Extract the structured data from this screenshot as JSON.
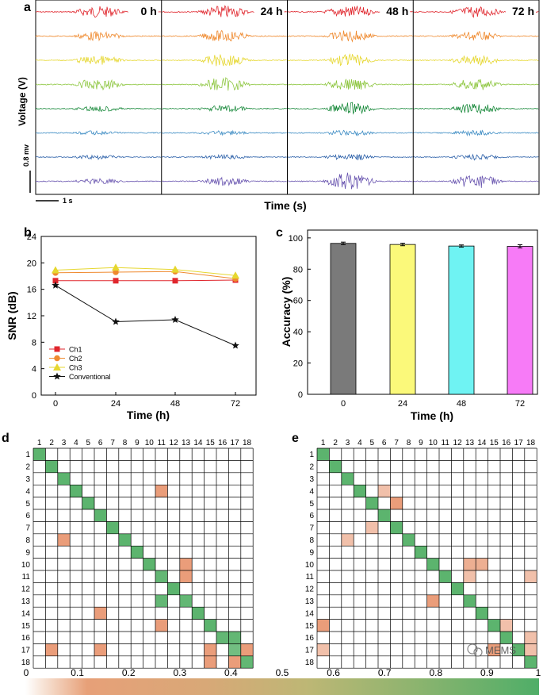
{
  "colors": {
    "grid": "#000000",
    "cm_green": "#5cb46e",
    "cm_low": "#e7916a",
    "cb_start": "#f8e7db",
    "cb_mid": "#bdb775",
    "cb_end": "#4fae68"
  },
  "panels": {
    "a": {
      "label": "a",
      "ylabel": "Voltage (V)",
      "xlabel": "Time (s)",
      "scalebar_v": "0.8 mv",
      "scalebar_t": "1 s",
      "column_labels": [
        "0 h",
        "24 h",
        "48 h",
        "72 h"
      ],
      "trace_colors": [
        "#e0262d",
        "#ef8a2f",
        "#e6d72f",
        "#8dc63f",
        "#1a8a3c",
        "#3b8bc3",
        "#2a5fa8",
        "#6a56b0"
      ],
      "trace_amplitudes": [
        [
          0.9,
          1.0,
          1.0,
          0.9
        ],
        [
          0.7,
          0.9,
          0.9,
          0.7
        ],
        [
          0.7,
          1.0,
          1.0,
          0.8
        ],
        [
          0.9,
          1.1,
          1.0,
          0.9
        ],
        [
          0.4,
          0.5,
          1.0,
          0.8
        ],
        [
          0.3,
          0.3,
          0.4,
          0.4
        ],
        [
          0.3,
          0.3,
          0.5,
          0.4
        ],
        [
          0.4,
          0.6,
          1.4,
          1.1
        ]
      ]
    },
    "b": {
      "label": "b",
      "chart_data": {
        "type": "line",
        "xlabel": "Time (h)",
        "ylabel": "SNR (dB)",
        "x": [
          0,
          24,
          48,
          72
        ],
        "xticks": [
          "0",
          "24",
          "48",
          "72"
        ],
        "yticks": [
          "0",
          "4",
          "8",
          "12",
          "16",
          "20",
          "24"
        ],
        "ylim": [
          0,
          24
        ],
        "series": [
          {
            "name": "Ch1",
            "values": [
              17.3,
              17.3,
              17.3,
              17.4
            ],
            "color": "#e0262d",
            "marker": "square"
          },
          {
            "name": "Ch2",
            "values": [
              18.5,
              18.6,
              18.7,
              17.6
            ],
            "color": "#ef8a2f",
            "marker": "circle"
          },
          {
            "name": "Ch3",
            "values": [
              18.9,
              19.3,
              19.0,
              18.1
            ],
            "color": "#e6d72f",
            "marker": "triangle"
          },
          {
            "name": "Conventional",
            "values": [
              16.6,
              11.1,
              11.4,
              7.5
            ],
            "color": "#111111",
            "marker": "star"
          }
        ]
      }
    },
    "c": {
      "label": "c",
      "chart_data": {
        "type": "bar",
        "xlabel": "Time (h)",
        "ylabel": "Accuracy (%)",
        "categories": [
          "0",
          "24",
          "48",
          "72"
        ],
        "values": [
          96.5,
          95.8,
          94.8,
          94.6
        ],
        "errors": [
          0.8,
          0.8,
          0.7,
          1.0
        ],
        "yticks": [
          "0",
          "20",
          "40",
          "60",
          "80",
          "100"
        ],
        "ylim": [
          0,
          105
        ],
        "colors": [
          "#7a7a7a",
          "#fbf97a",
          "#6ff3f3",
          "#f77bf7"
        ]
      }
    },
    "d": {
      "label": "d",
      "chart_data": {
        "type": "heatmap",
        "labels": [
          "1",
          "2",
          "3",
          "4",
          "5",
          "6",
          "7",
          "8",
          "9",
          "10",
          "11",
          "12",
          "13",
          "14",
          "15",
          "16",
          "17",
          "18"
        ],
        "diagonal": [
          1,
          1,
          1,
          1,
          1,
          1,
          1,
          1,
          1,
          1,
          0.9,
          1,
          0.9,
          1,
          1,
          0.9,
          0.7,
          0.9
        ],
        "off_diagonal": [
          [
            4,
            11,
            0.2
          ],
          [
            8,
            3,
            0.2
          ],
          [
            10,
            13,
            0.2
          ],
          [
            11,
            13,
            0.2
          ],
          [
            13,
            11,
            0.9
          ],
          [
            14,
            6,
            0.2
          ],
          [
            15,
            11,
            0.2
          ],
          [
            16,
            17,
            0.9
          ],
          [
            17,
            2,
            0.2
          ],
          [
            17,
            6,
            0.2
          ],
          [
            17,
            15,
            0.2
          ],
          [
            17,
            18,
            0.2
          ],
          [
            18,
            15,
            0.2
          ],
          [
            18,
            17,
            0.2
          ]
        ]
      }
    },
    "e": {
      "label": "e",
      "chart_data": {
        "type": "heatmap",
        "labels": [
          "1",
          "2",
          "3",
          "4",
          "5",
          "6",
          "7",
          "8",
          "9",
          "10",
          "11",
          "12",
          "13",
          "14",
          "15",
          "16",
          "17",
          "18"
        ],
        "diagonal": [
          1,
          1,
          1,
          1,
          1,
          1,
          1,
          1,
          1,
          1,
          1,
          1,
          1,
          1,
          1,
          1,
          1,
          1
        ],
        "off_diagonal": [
          [
            4,
            6,
            0.1
          ],
          [
            5,
            7,
            0.2
          ],
          [
            7,
            5,
            0.1
          ],
          [
            8,
            3,
            0.1
          ],
          [
            10,
            13,
            0.15
          ],
          [
            10,
            14,
            0.15
          ],
          [
            11,
            13,
            0.1
          ],
          [
            11,
            18,
            0.1
          ],
          [
            13,
            10,
            0.2
          ],
          [
            15,
            1,
            0.2
          ],
          [
            15,
            16,
            0.1
          ],
          [
            16,
            18,
            0.1
          ],
          [
            17,
            1,
            0.1
          ],
          [
            17,
            15,
            0.2
          ],
          [
            17,
            18,
            0.1
          ]
        ]
      }
    }
  },
  "colorbar": {
    "ticks": [
      "0",
      "0.1",
      "0.2",
      "0.3",
      "0.4",
      "0.5",
      "0.6",
      "0.7",
      "0.8",
      "0.9",
      "1"
    ]
  },
  "watermark": "MEMS"
}
